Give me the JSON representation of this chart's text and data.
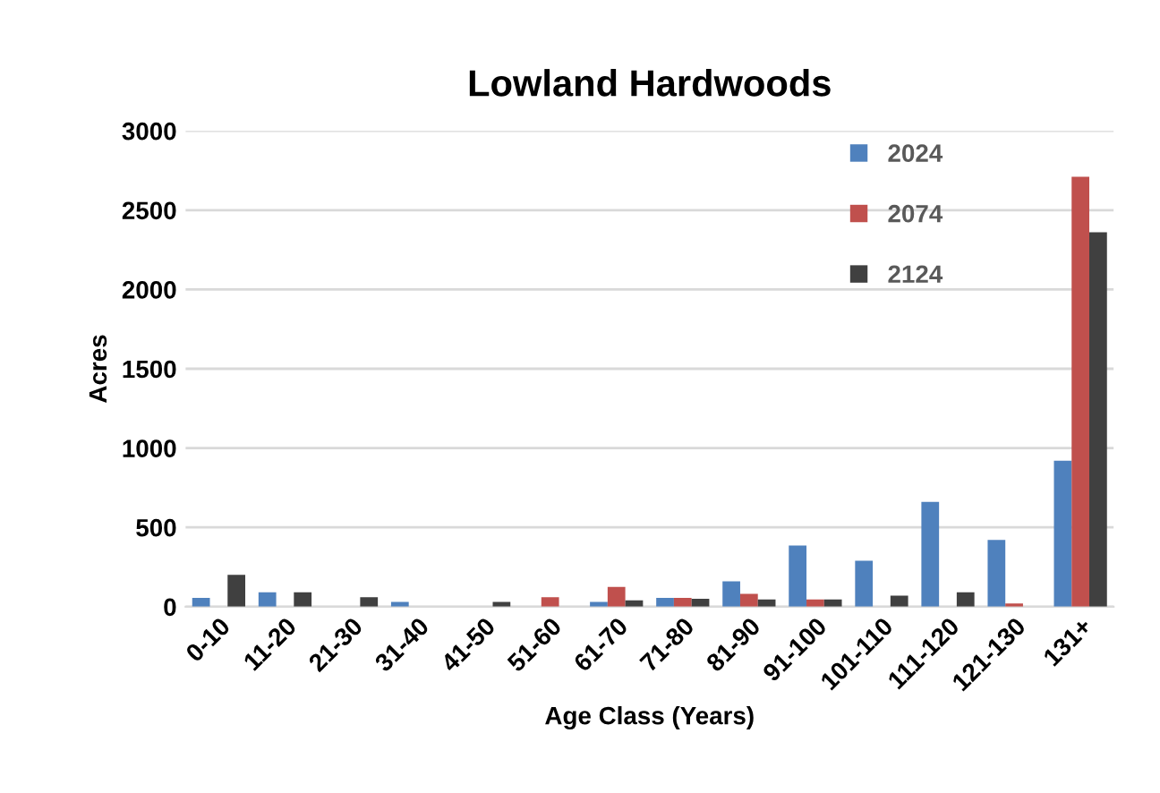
{
  "chart_data": {
    "type": "bar",
    "title": "Lowland Hardwoods",
    "xlabel": "Age Class (Years)",
    "ylabel": "Acres",
    "categories": [
      "0-10",
      "11-20",
      "21-30",
      "31-40",
      "41-50",
      "51-60",
      "61-70",
      "71-80",
      "81-90",
      "91-100",
      "101-110",
      "111-120",
      "121-130",
      "131+"
    ],
    "series": [
      {
        "name": "2024",
        "color": "#4f81bd",
        "values": [
          55,
          90,
          0,
          30,
          0,
          0,
          30,
          55,
          160,
          385,
          290,
          660,
          420,
          920
        ]
      },
      {
        "name": "2074",
        "color": "#c0504d",
        "values": [
          0,
          0,
          0,
          0,
          0,
          60,
          125,
          55,
          80,
          45,
          0,
          0,
          20,
          2710
        ]
      },
      {
        "name": "2124",
        "color": "#404040",
        "values": [
          200,
          90,
          60,
          0,
          30,
          0,
          40,
          50,
          45,
          45,
          70,
          90,
          0,
          2360
        ]
      }
    ],
    "ylim": [
      0,
      3000
    ],
    "yticks": [
      0,
      500,
      1000,
      1500,
      2000,
      2500,
      3000
    ],
    "grid": "y",
    "legend": "top right"
  }
}
